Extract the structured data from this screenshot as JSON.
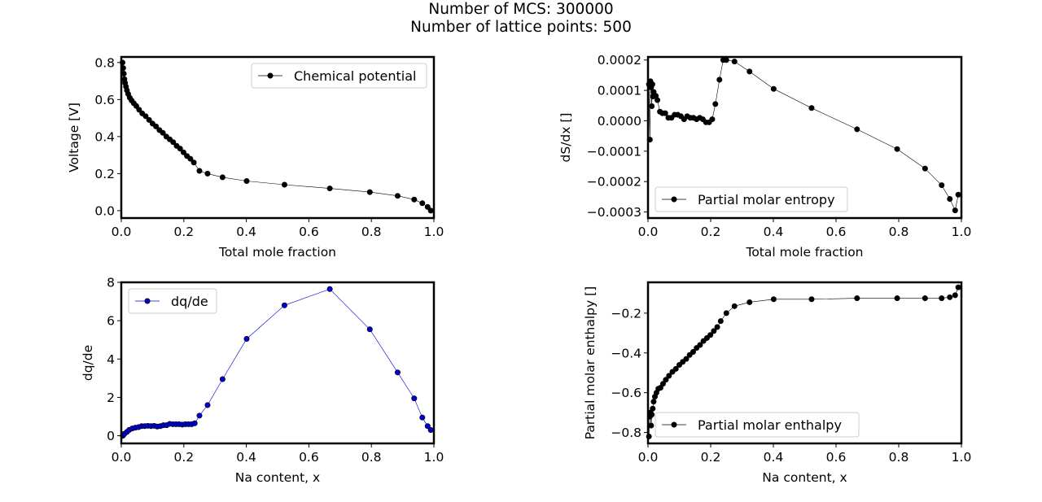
{
  "figure": {
    "suptitle_line1": "Number of MCS: 300000",
    "suptitle_line2": "Number of lattice points: 500"
  },
  "chart_data": [
    {
      "id": "voltage",
      "type": "line",
      "xlabel": "Total mole fraction",
      "ylabel": "Voltage [V]",
      "xlim": [
        0.0,
        1.0
      ],
      "ylim": [
        -0.04,
        0.83
      ],
      "xticks": [
        0.0,
        0.2,
        0.4,
        0.6,
        0.8,
        1.0
      ],
      "xtick_labels": [
        "0.0",
        "0.2",
        "0.4",
        "0.6",
        "0.8",
        "1.0"
      ],
      "yticks": [
        0.0,
        0.2,
        0.4,
        0.6,
        0.8
      ],
      "ytick_labels": [
        "0.0",
        "0.2",
        "0.4",
        "0.6",
        "0.8"
      ],
      "grid": false,
      "legend": "top-right",
      "series": [
        {
          "name": "Chemical potential",
          "color": "#000000",
          "x": [
            0.004,
            0.006,
            0.008,
            0.01,
            0.012,
            0.015,
            0.018,
            0.022,
            0.027,
            0.033,
            0.04,
            0.048,
            0.057,
            0.067,
            0.078,
            0.089,
            0.1,
            0.111,
            0.122,
            0.133,
            0.144,
            0.155,
            0.166,
            0.177,
            0.188,
            0.199,
            0.21,
            0.221,
            0.232,
            0.25,
            0.276,
            0.324,
            0.401,
            0.522,
            0.667,
            0.795,
            0.884,
            0.937,
            0.963,
            0.98,
            0.99
          ],
          "y": [
            0.8,
            0.77,
            0.74,
            0.71,
            0.69,
            0.67,
            0.65,
            0.63,
            0.61,
            0.595,
            0.58,
            0.565,
            0.545,
            0.525,
            0.51,
            0.49,
            0.47,
            0.455,
            0.435,
            0.42,
            0.4,
            0.385,
            0.37,
            0.35,
            0.335,
            0.315,
            0.295,
            0.28,
            0.26,
            0.215,
            0.2,
            0.18,
            0.16,
            0.14,
            0.12,
            0.1,
            0.08,
            0.06,
            0.04,
            0.02,
            0.0
          ]
        }
      ]
    },
    {
      "id": "entropy",
      "type": "line",
      "xlabel": "Total mole fraction",
      "ylabel": "dS/dx []",
      "xlim": [
        0.0,
        1.0
      ],
      "ylim": [
        -0.00032,
        0.00021
      ],
      "xticks": [
        0.0,
        0.2,
        0.4,
        0.6,
        0.8,
        1.0
      ],
      "xtick_labels": [
        "0.0",
        "0.2",
        "0.4",
        "0.6",
        "0.8",
        "1.0"
      ],
      "yticks": [
        -0.0003,
        -0.0002,
        -0.0001,
        0.0,
        0.0001,
        0.0002
      ],
      "ytick_labels": [
        "−0.0003",
        "−0.0002",
        "−0.0001",
        "0.0000",
        "0.0001",
        "0.0002"
      ],
      "grid": false,
      "legend": "bottom-left",
      "series": [
        {
          "name": "Partial molar entropy",
          "color": "#000000",
          "x": [
            0.003,
            0.006,
            0.008,
            0.01,
            0.012,
            0.014,
            0.016,
            0.018,
            0.02,
            0.025,
            0.03,
            0.038,
            0.046,
            0.055,
            0.065,
            0.075,
            0.085,
            0.095,
            0.105,
            0.115,
            0.125,
            0.135,
            0.145,
            0.155,
            0.165,
            0.175,
            0.185,
            0.195,
            0.205,
            0.215,
            0.228,
            0.24,
            0.25,
            0.276,
            0.324,
            0.401,
            0.522,
            0.667,
            0.795,
            0.884,
            0.937,
            0.963,
            0.98,
            0.99
          ],
          "y": [
            0.00012,
            -6.2e-05,
            0.00013,
            0.00011,
            4.8e-05,
            0.00012,
            8e-05,
            9.5e-05,
            8.2e-05,
            8.2e-05,
            6.8e-05,
            3e-05,
            2.5e-05,
            2.5e-05,
            1e-05,
            1e-05,
            2e-05,
            2e-05,
            1.5e-05,
            5e-06,
            1.5e-05,
            1e-05,
            1e-05,
            5e-06,
            1e-05,
            5e-06,
            -5e-06,
            -5e-06,
            5e-06,
            5.5e-05,
            0.000135,
            0.0002,
            0.0002,
            0.000195,
            0.000162,
            0.000105,
            4.2e-05,
            -2.8e-05,
            -9.3e-05,
            -0.000157,
            -0.000212,
            -0.000257,
            -0.000295,
            -0.000243
          ]
        }
      ]
    },
    {
      "id": "dqde",
      "type": "line",
      "xlabel": "Na content, x",
      "ylabel": "dq/de",
      "xlim": [
        0.0,
        1.0
      ],
      "ylim": [
        -0.4,
        8.0
      ],
      "xticks": [
        0.0,
        0.2,
        0.4,
        0.6,
        0.8,
        1.0
      ],
      "xtick_labels": [
        "0.0",
        "0.2",
        "0.4",
        "0.6",
        "0.8",
        "1.0"
      ],
      "yticks": [
        0,
        2,
        4,
        6,
        8
      ],
      "ytick_labels": [
        "0",
        "2",
        "4",
        "6",
        "8"
      ],
      "grid": false,
      "legend": "top-left",
      "series": [
        {
          "name": "dq/de",
          "color": "#0000cc",
          "x": [
            0.005,
            0.01,
            0.018,
            0.025,
            0.035,
            0.045,
            0.055,
            0.065,
            0.075,
            0.085,
            0.095,
            0.105,
            0.115,
            0.125,
            0.135,
            0.145,
            0.155,
            0.165,
            0.175,
            0.185,
            0.195,
            0.205,
            0.215,
            0.225,
            0.235,
            0.25,
            0.276,
            0.324,
            0.401,
            0.522,
            0.667,
            0.795,
            0.884,
            0.937,
            0.963,
            0.98,
            0.99
          ],
          "y": [
            0.0,
            0.1,
            0.2,
            0.3,
            0.38,
            0.42,
            0.45,
            0.5,
            0.5,
            0.52,
            0.5,
            0.52,
            0.48,
            0.5,
            0.55,
            0.55,
            0.62,
            0.6,
            0.6,
            0.6,
            0.58,
            0.6,
            0.6,
            0.6,
            0.65,
            1.05,
            1.6,
            2.95,
            5.05,
            6.8,
            7.65,
            5.55,
            3.3,
            1.95,
            0.95,
            0.5,
            0.3
          ]
        }
      ]
    },
    {
      "id": "enthalpy",
      "type": "line",
      "xlabel": "Na content, x",
      "ylabel": "Partial molar enthalpy []",
      "xlim": [
        0.0,
        1.0
      ],
      "ylim": [
        -0.855,
        -0.045
      ],
      "xticks": [
        0.0,
        0.2,
        0.4,
        0.6,
        0.8,
        1.0
      ],
      "xtick_labels": [
        "0.0",
        "0.2",
        "0.4",
        "0.6",
        "0.8",
        "1.0"
      ],
      "yticks": [
        -0.8,
        -0.6,
        -0.4,
        -0.2
      ],
      "ytick_labels": [
        "−0.8",
        "−0.6",
        "−0.4",
        "−0.2"
      ],
      "grid": false,
      "legend": "bottom-left",
      "series": [
        {
          "name": "Partial molar enthalpy",
          "color": "#000000",
          "x": [
            0.003,
            0.006,
            0.008,
            0.01,
            0.012,
            0.015,
            0.018,
            0.022,
            0.027,
            0.033,
            0.04,
            0.048,
            0.057,
            0.067,
            0.078,
            0.089,
            0.1,
            0.111,
            0.122,
            0.133,
            0.144,
            0.155,
            0.166,
            0.177,
            0.188,
            0.199,
            0.21,
            0.221,
            0.232,
            0.25,
            0.276,
            0.324,
            0.401,
            0.522,
            0.667,
            0.795,
            0.884,
            0.937,
            0.963,
            0.98,
            0.99
          ],
          "y": [
            -0.82,
            -0.72,
            -0.7,
            -0.765,
            -0.71,
            -0.68,
            -0.645,
            -0.62,
            -0.6,
            -0.58,
            -0.575,
            -0.555,
            -0.535,
            -0.515,
            -0.495,
            -0.48,
            -0.46,
            -0.445,
            -0.43,
            -0.41,
            -0.395,
            -0.375,
            -0.36,
            -0.34,
            -0.325,
            -0.31,
            -0.29,
            -0.27,
            -0.24,
            -0.2,
            -0.165,
            -0.145,
            -0.13,
            -0.13,
            -0.125,
            -0.125,
            -0.125,
            -0.125,
            -0.12,
            -0.11,
            -0.07
          ]
        }
      ]
    }
  ]
}
